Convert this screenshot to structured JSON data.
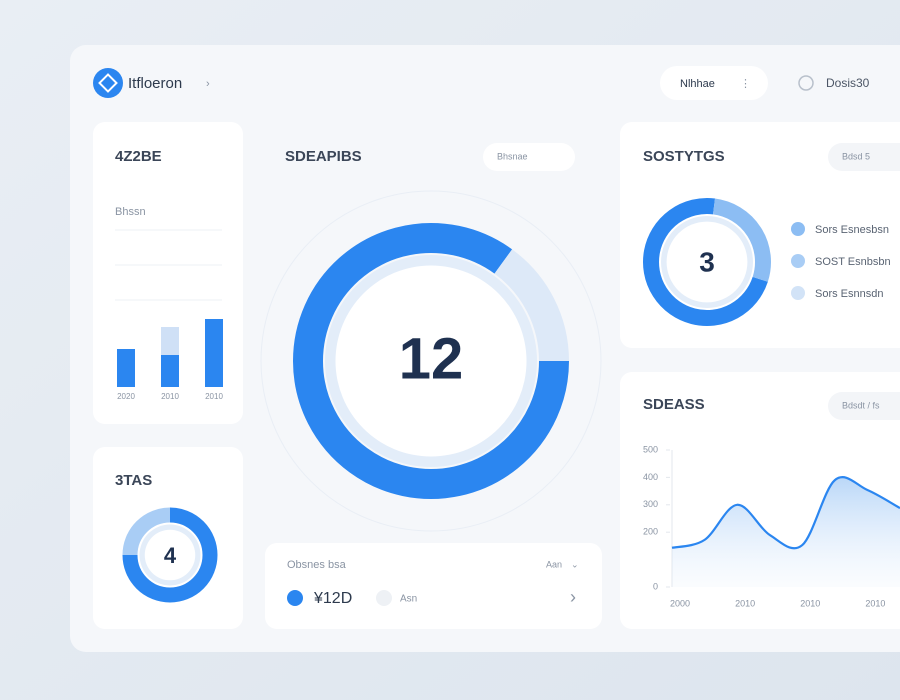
{
  "header": {
    "brand": "Itfloeron",
    "menu": "Nlhhae",
    "user": "Dosis30"
  },
  "cards": {
    "bars": {
      "type": "bar",
      "title": "4Z2BE",
      "subtitle": "Bhssn",
      "categories": [
        "2020",
        "2010",
        "2010"
      ],
      "series": [
        {
          "color": "#2b86f0",
          "values": [
            38,
            32,
            68
          ]
        },
        {
          "color": "#cfe0f6",
          "values": [
            null,
            28,
            null
          ]
        }
      ]
    },
    "main_donut": {
      "type": "donut",
      "title": "SDEAPIBS",
      "button": "Bhsnae",
      "center": "12",
      "values": [
        85,
        15
      ],
      "colors": [
        "#2b86f0",
        "#dde9f8"
      ]
    },
    "stats": {
      "type": "donut",
      "title": "SOSTYTGS",
      "button": "Bdsd 5",
      "center": "3",
      "values": [
        72,
        28
      ],
      "colors": [
        "#2b86f0",
        "#8cbdf3"
      ],
      "legend": [
        {
          "label": "Sors Esnesbsn",
          "color": "#8cbdf3"
        },
        {
          "label": "SOST Esnbsbn",
          "color": "#a9cdf5"
        },
        {
          "label": "Sors Esnnsdn",
          "color": "#d2e3f7"
        }
      ]
    },
    "small": {
      "type": "donut",
      "title": "3TAS",
      "center": "4",
      "values": [
        75,
        25
      ],
      "colors": [
        "#2b86f0",
        "#a9cdf5"
      ]
    },
    "balance": {
      "title": "Obsnes bsa",
      "menu": "Aan",
      "amount": "¥12D",
      "note": "Asn"
    },
    "line": {
      "type": "line",
      "title": "SDEASS",
      "button": "Bdsdt / fs",
      "categories": [
        "2000",
        null,
        "2010",
        null,
        "2010",
        null,
        "2010",
        null
      ],
      "values": [
        143,
        172,
        300,
        190,
        153,
        390,
        354,
        288
      ],
      "ylim": [
        0,
        500
      ],
      "yticks": [
        0,
        200,
        300,
        400,
        500
      ],
      "color": "#2b86f0"
    }
  }
}
